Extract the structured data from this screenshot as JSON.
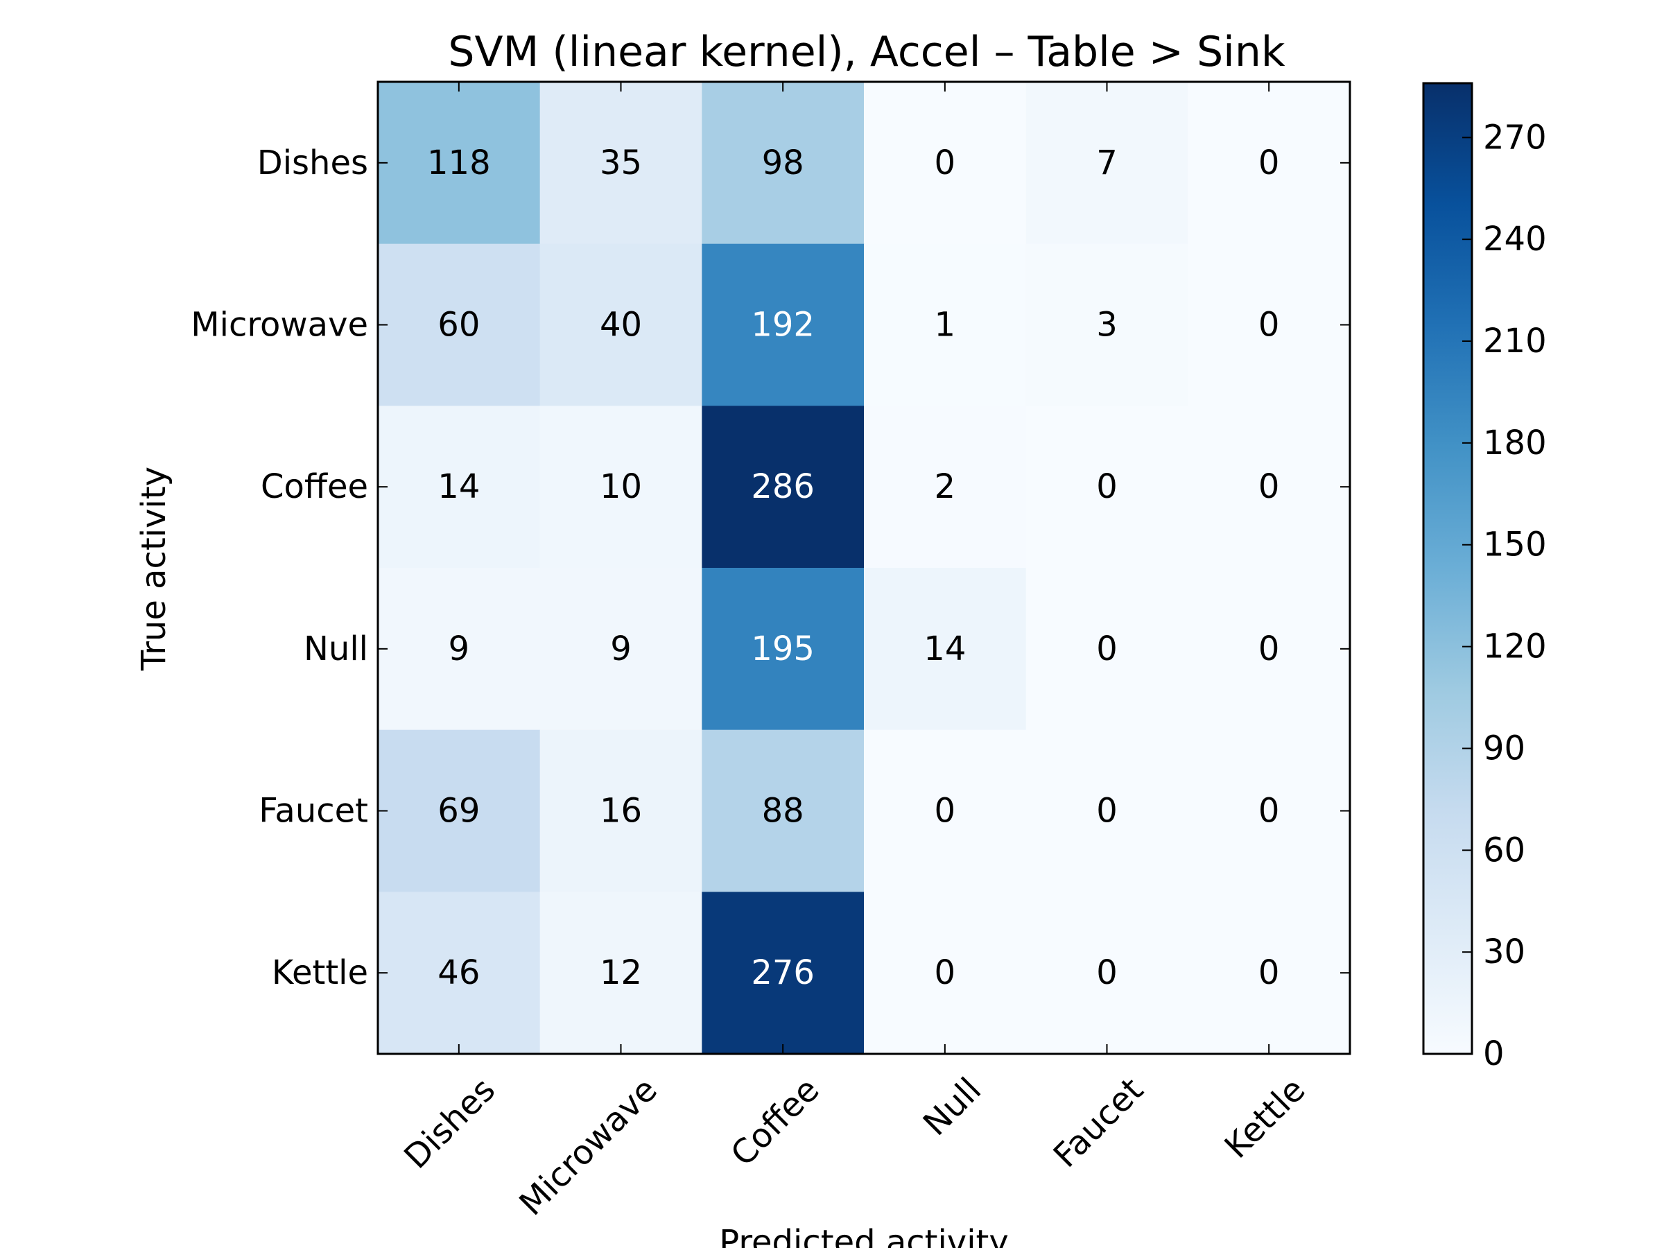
{
  "chart_data": {
    "type": "heatmap",
    "title": "SVM (linear kernel), Accel – Table > Sink",
    "xlabel": "Predicted activity",
    "ylabel": "True activity",
    "x_categories": [
      "Dishes",
      "Microwave",
      "Coffee",
      "Null",
      "Faucet",
      "Kettle"
    ],
    "y_categories": [
      "Dishes",
      "Microwave",
      "Coffee",
      "Null",
      "Faucet",
      "Kettle"
    ],
    "values": [
      [
        118,
        35,
        98,
        0,
        7,
        0
      ],
      [
        60,
        40,
        192,
        1,
        3,
        0
      ],
      [
        14,
        10,
        286,
        2,
        0,
        0
      ],
      [
        9,
        9,
        195,
        14,
        0,
        0
      ],
      [
        69,
        16,
        88,
        0,
        0,
        0
      ],
      [
        46,
        12,
        276,
        0,
        0,
        0
      ]
    ],
    "colormap": "Blues",
    "colorbar": {
      "min": 0,
      "max": 286,
      "ticks": [
        0,
        30,
        60,
        90,
        120,
        150,
        180,
        210,
        240,
        270
      ]
    },
    "colors": {
      "low": "#f7fbff",
      "high": "#08306b",
      "text_light": "#ffffff",
      "text_dark": "#000000"
    }
  }
}
